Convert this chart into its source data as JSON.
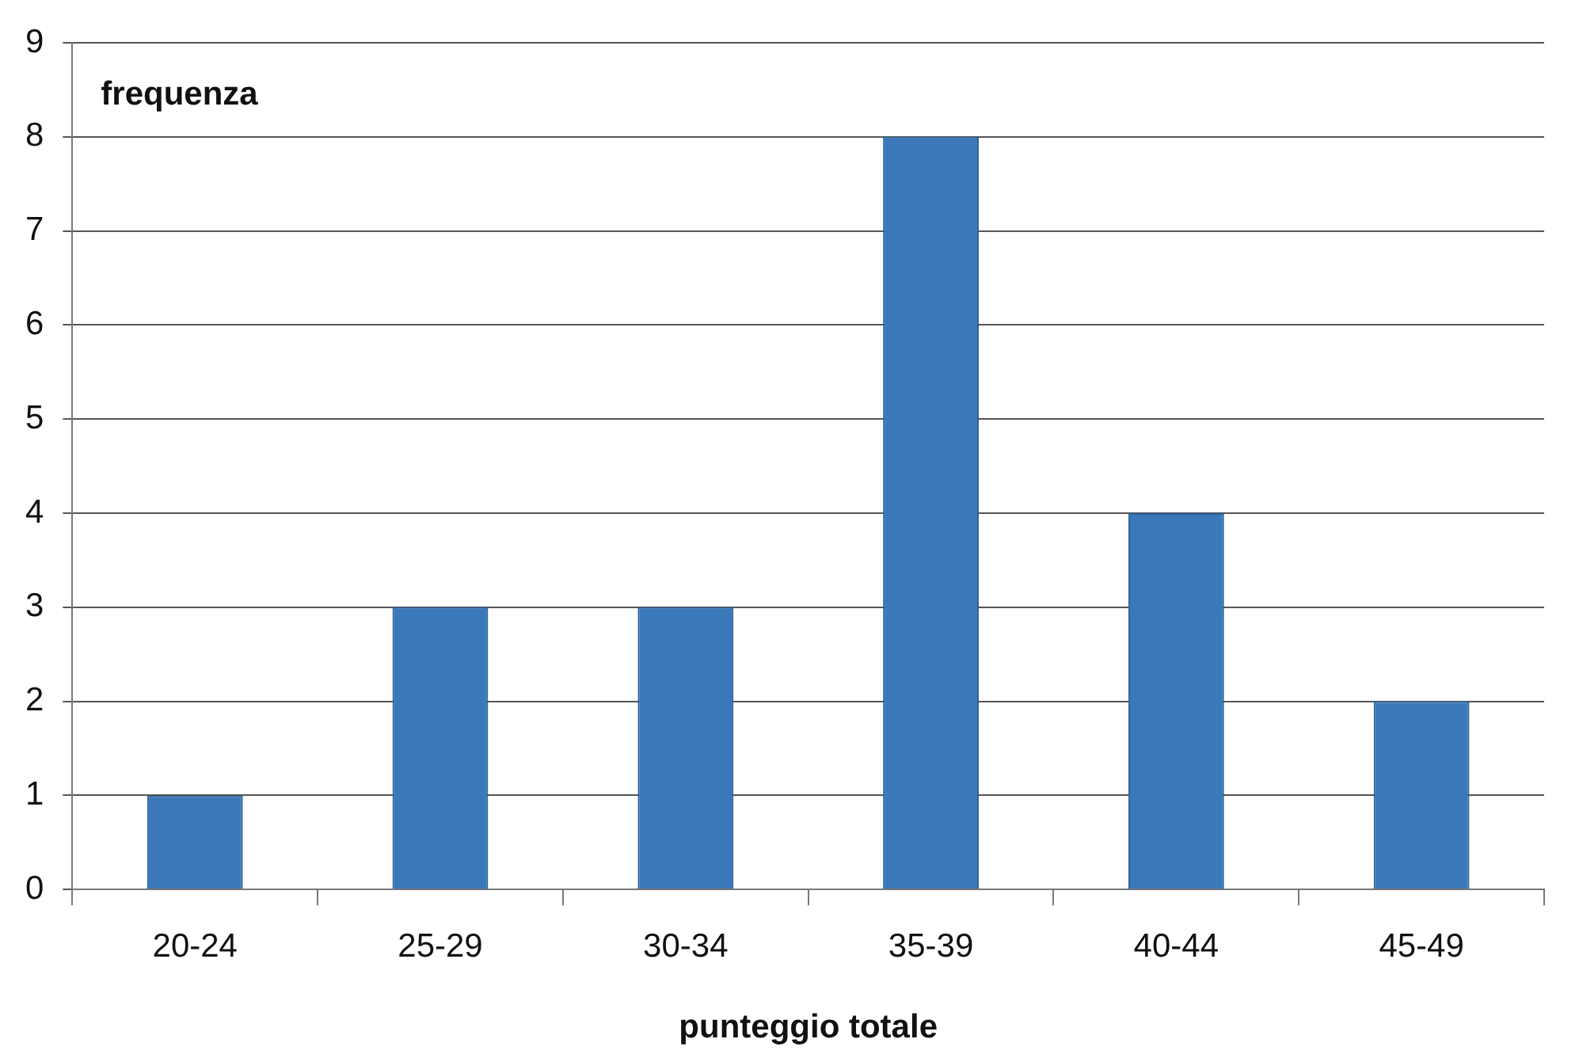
{
  "chart_data": {
    "type": "bar",
    "ylabel": "frequenza",
    "xlabel": "punteggio totale",
    "categories": [
      "20-24",
      "25-29",
      "30-34",
      "35-39",
      "40-44",
      "45-49"
    ],
    "values": [
      1,
      3,
      3,
      8,
      4,
      2
    ],
    "color": "#3b78b9",
    "ylim": [
      0,
      9
    ],
    "yticks": [
      0,
      1,
      2,
      3,
      4,
      5,
      6,
      7,
      8,
      9
    ],
    "grid": "y",
    "legend": false
  }
}
